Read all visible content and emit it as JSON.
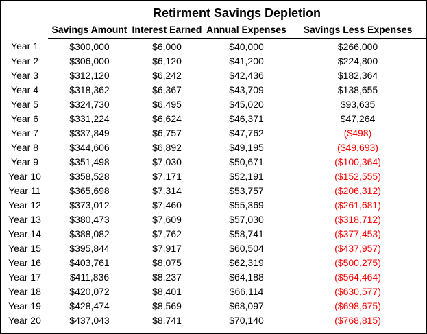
{
  "title": "Retirment Savings Depletion",
  "table": {
    "columns": [
      "Savings Amount",
      "Interest Earned",
      "Annual Expenses",
      "Savings Less Expenses"
    ],
    "rows": [
      {
        "label": "Year 1",
        "savings_amount": "$300,000",
        "interest_earned": "$6,000",
        "annual_expenses": "$40,000",
        "savings_less_expenses": "$266,000"
      },
      {
        "label": "Year 2",
        "savings_amount": "$306,000",
        "interest_earned": "$6,120",
        "annual_expenses": "$41,200",
        "savings_less_expenses": "$224,800"
      },
      {
        "label": "Year 3",
        "savings_amount": "$312,120",
        "interest_earned": "$6,242",
        "annual_expenses": "$42,436",
        "savings_less_expenses": "$182,364"
      },
      {
        "label": "Year 4",
        "savings_amount": "$318,362",
        "interest_earned": "$6,367",
        "annual_expenses": "$43,709",
        "savings_less_expenses": "$138,655"
      },
      {
        "label": "Year 5",
        "savings_amount": "$324,730",
        "interest_earned": "$6,495",
        "annual_expenses": "$45,020",
        "savings_less_expenses": "$93,635"
      },
      {
        "label": "Year 6",
        "savings_amount": "$331,224",
        "interest_earned": "$6,624",
        "annual_expenses": "$46,371",
        "savings_less_expenses": "$47,264"
      },
      {
        "label": "Year 7",
        "savings_amount": "$337,849",
        "interest_earned": "$6,757",
        "annual_expenses": "$47,762",
        "savings_less_expenses": "($498)"
      },
      {
        "label": "Year 8",
        "savings_amount": "$344,606",
        "interest_earned": "$6,892",
        "annual_expenses": "$49,195",
        "savings_less_expenses": "($49,693)"
      },
      {
        "label": "Year 9",
        "savings_amount": "$351,498",
        "interest_earned": "$7,030",
        "annual_expenses": "$50,671",
        "savings_less_expenses": "($100,364)"
      },
      {
        "label": "Year 10",
        "savings_amount": "$358,528",
        "interest_earned": "$7,171",
        "annual_expenses": "$52,191",
        "savings_less_expenses": "($152,555)"
      },
      {
        "label": "Year 11",
        "savings_amount": "$365,698",
        "interest_earned": "$7,314",
        "annual_expenses": "$53,757",
        "savings_less_expenses": "($206,312)"
      },
      {
        "label": "Year 12",
        "savings_amount": "$373,012",
        "interest_earned": "$7,460",
        "annual_expenses": "$55,369",
        "savings_less_expenses": "($261,681)"
      },
      {
        "label": "Year 13",
        "savings_amount": "$380,473",
        "interest_earned": "$7,609",
        "annual_expenses": "$57,030",
        "savings_less_expenses": "($318,712)"
      },
      {
        "label": "Year 14",
        "savings_amount": "$388,082",
        "interest_earned": "$7,762",
        "annual_expenses": "$58,741",
        "savings_less_expenses": "($377,453)"
      },
      {
        "label": "Year 15",
        "savings_amount": "$395,844",
        "interest_earned": "$7,917",
        "annual_expenses": "$60,504",
        "savings_less_expenses": "($437,957)"
      },
      {
        "label": "Year 16",
        "savings_amount": "$403,761",
        "interest_earned": "$8,075",
        "annual_expenses": "$62,319",
        "savings_less_expenses": "($500,275)"
      },
      {
        "label": "Year 17",
        "savings_amount": "$411,836",
        "interest_earned": "$8,237",
        "annual_expenses": "$64,188",
        "savings_less_expenses": "($564,464)"
      },
      {
        "label": "Year 18",
        "savings_amount": "$420,072",
        "interest_earned": "$8,401",
        "annual_expenses": "$66,114",
        "savings_less_expenses": "($630,577)"
      },
      {
        "label": "Year 19",
        "savings_amount": "$428,474",
        "interest_earned": "$8,569",
        "annual_expenses": "$68,097",
        "savings_less_expenses": "($698,675)"
      },
      {
        "label": "Year 20",
        "savings_amount": "$437,043",
        "interest_earned": "$8,741",
        "annual_expenses": "$70,140",
        "savings_less_expenses": "($768,815)"
      }
    ]
  },
  "colors": {
    "text": "#000000",
    "negative_value": "#FF0000",
    "border": "#000000",
    "background": "#FFFFFF"
  }
}
